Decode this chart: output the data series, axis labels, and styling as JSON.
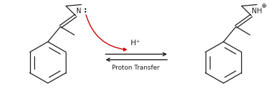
{
  "background_color": "#ffffff",
  "figsize": [
    3.89,
    1.38
  ],
  "dpi": 100,
  "arrow_label": "H⁺",
  "arrow_sublabel": "Proton Transfer",
  "line_color": "#1a1a1a",
  "red_arrow_color": "#cc0000",
  "text_color": "#1a1a1a",
  "font_size_label": 7,
  "font_size_sublabel": 6.5
}
